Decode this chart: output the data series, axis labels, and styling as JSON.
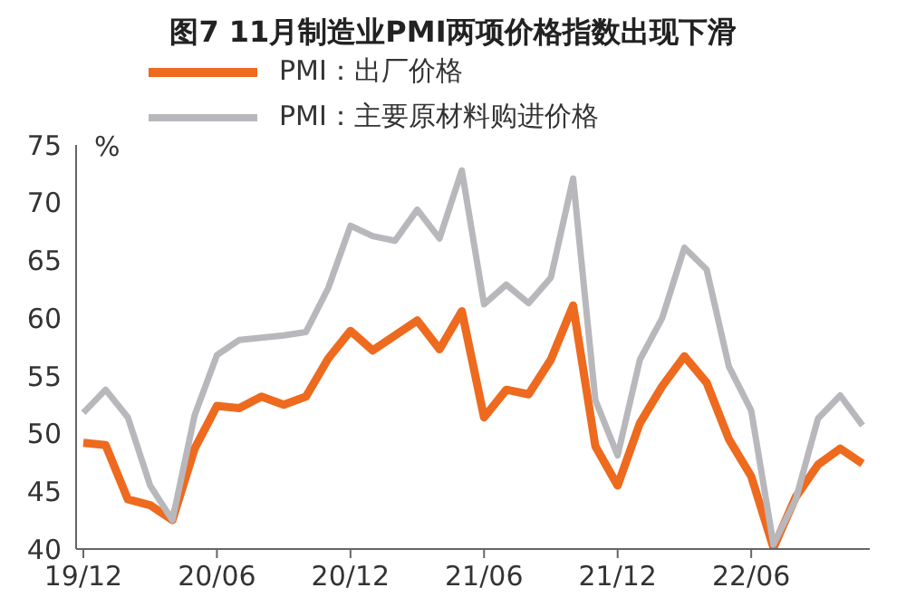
{
  "chart_data": {
    "type": "line",
    "title": "图7 11月制造业PMI两项价格指数出现下滑",
    "ylabel": "%",
    "categories": [
      "19/12",
      null,
      null,
      null,
      null,
      null,
      "20/06",
      null,
      null,
      null,
      null,
      null,
      "20/12",
      null,
      null,
      null,
      null,
      null,
      "21/06",
      null,
      null,
      null,
      null,
      null,
      "21/12",
      null,
      null,
      null,
      null,
      null,
      "22/06",
      null,
      null,
      null,
      null,
      null
    ],
    "series": [
      {
        "name": "PMI：出厂价格",
        "color": "#ee6a1e",
        "values": [
          49.2,
          49.0,
          44.3,
          43.8,
          42.5,
          48.7,
          52.4,
          52.2,
          53.2,
          52.5,
          53.2,
          56.5,
          58.9,
          57.2,
          58.5,
          59.8,
          57.3,
          60.6,
          51.4,
          53.8,
          53.4,
          56.4,
          61.1,
          48.9,
          45.5,
          50.9,
          54.1,
          56.7,
          54.4,
          49.5,
          46.3,
          40.1,
          44.5,
          47.3,
          48.7,
          47.4
        ]
      },
      {
        "name": "PMI：主要原材料购进价格",
        "color": "#b8b8bc",
        "values": [
          51.8,
          53.8,
          51.4,
          45.5,
          42.5,
          51.6,
          56.8,
          58.1,
          58.3,
          58.5,
          58.8,
          62.6,
          68.0,
          67.1,
          66.7,
          69.4,
          66.9,
          72.8,
          61.2,
          62.9,
          61.3,
          63.5,
          72.1,
          52.9,
          48.1,
          56.4,
          60.0,
          66.1,
          64.2,
          55.8,
          52.0,
          40.4,
          44.3,
          51.3,
          53.3,
          50.7
        ]
      }
    ],
    "ylim": [
      40,
      75
    ],
    "yticks": [
      40,
      45,
      50,
      55,
      60,
      65,
      70,
      75
    ],
    "grid": false,
    "legend": "top",
    "marker": "none",
    "line_style": "solid"
  }
}
